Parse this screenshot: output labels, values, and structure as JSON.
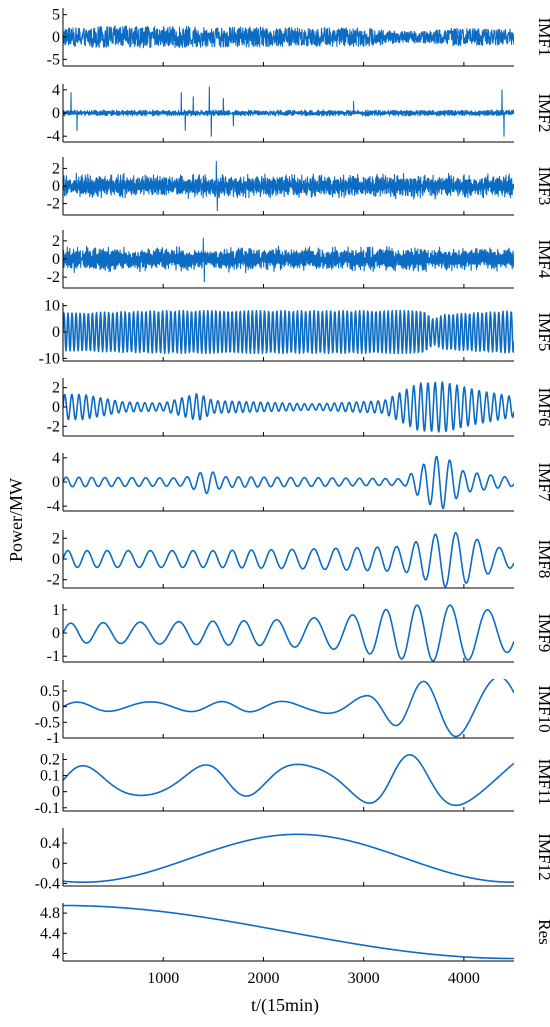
{
  "chart_data": {
    "type": "line",
    "ylabel": "Power/MW",
    "xlabel": "t/(15min)",
    "xlim": [
      0,
      4500
    ],
    "xticks": [
      1000,
      2000,
      3000,
      4000
    ],
    "xtick_labels": [
      "1000",
      "2000",
      "3000",
      "4000"
    ],
    "series_color": "#0c6cc4",
    "panels": [
      {
        "name": "IMF1",
        "ylim": [
          -6.5,
          6.5
        ],
        "yticks": [
          5,
          0,
          -5
        ],
        "ytick_labels": [
          "5",
          "0",
          "-5"
        ],
        "kind": "noise",
        "amplitude": 5.5,
        "cycles": 900,
        "envelope": [
          [
            0,
            0.8
          ],
          [
            500,
            1.0
          ],
          [
            2000,
            0.9
          ],
          [
            3000,
            0.85
          ],
          [
            3400,
            0.5
          ],
          [
            3700,
            0.6
          ],
          [
            3900,
            0.8
          ],
          [
            4500,
            0.7
          ]
        ]
      },
      {
        "name": "IMF2",
        "ylim": [
          -5,
          5
        ],
        "yticks": [
          4,
          0,
          -4
        ],
        "ytick_labels": [
          "4",
          "0",
          "-4"
        ],
        "kind": "bursty",
        "amplitude": 1.0,
        "cycles": 700,
        "envelope": [
          [
            0,
            0.25
          ],
          [
            4500,
            0.25
          ]
        ],
        "spikes": [
          [
            80,
            3.5
          ],
          [
            140,
            -3.0
          ],
          [
            1180,
            3.5
          ],
          [
            1220,
            -3.0
          ],
          [
            1300,
            2.8
          ],
          [
            1460,
            4.5
          ],
          [
            1480,
            -4.0
          ],
          [
            1600,
            2.5
          ],
          [
            1700,
            -2.2
          ],
          [
            2900,
            2.0
          ],
          [
            4380,
            4.0
          ],
          [
            4400,
            -4.0
          ]
        ]
      },
      {
        "name": "IMF3",
        "ylim": [
          -3.3,
          3.3
        ],
        "yticks": [
          2,
          0,
          -2
        ],
        "ytick_labels": [
          "2",
          "0",
          "-2"
        ],
        "kind": "noise",
        "amplitude": 1.2,
        "cycles": 550,
        "envelope": [
          [
            0,
            0.9
          ],
          [
            4500,
            0.9
          ]
        ],
        "spikes": [
          [
            1530,
            2.8
          ],
          [
            1540,
            -2.8
          ]
        ]
      },
      {
        "name": "IMF4",
        "ylim": [
          -3.2,
          3.2
        ],
        "yticks": [
          2,
          0,
          -2
        ],
        "ytick_labels": [
          "2",
          "0",
          "-2"
        ],
        "kind": "noise",
        "amplitude": 1.2,
        "cycles": 350,
        "envelope": [
          [
            0,
            0.9
          ],
          [
            4500,
            0.9
          ]
        ],
        "spikes": [
          [
            1400,
            2.3
          ],
          [
            1410,
            -2.5
          ]
        ]
      },
      {
        "name": "IMF5",
        "ylim": [
          -11,
          11
        ],
        "yticks": [
          10,
          0,
          -10
        ],
        "ytick_labels": [
          "10",
          "0",
          "-10"
        ],
        "kind": "wave",
        "amplitude": 9.5,
        "cycles": 110,
        "envelope": [
          [
            0,
            0.75
          ],
          [
            1000,
            0.85
          ],
          [
            3600,
            0.85
          ],
          [
            3700,
            0.5
          ],
          [
            3800,
            0.7
          ],
          [
            4500,
            0.85
          ]
        ]
      },
      {
        "name": "IMF6",
        "ylim": [
          -3,
          3
        ],
        "yticks": [
          2,
          0,
          -2
        ],
        "ytick_labels": [
          "2",
          "0",
          "-2"
        ],
        "kind": "wave",
        "amplitude": 2.6,
        "cycles": 62,
        "envelope": [
          [
            0,
            0.5
          ],
          [
            200,
            0.5
          ],
          [
            600,
            0.2
          ],
          [
            1000,
            0.15
          ],
          [
            1350,
            0.55
          ],
          [
            1500,
            0.25
          ],
          [
            2500,
            0.12
          ],
          [
            3200,
            0.25
          ],
          [
            3550,
            0.95
          ],
          [
            3800,
            1.0
          ],
          [
            4100,
            0.7
          ],
          [
            4500,
            0.4
          ]
        ]
      },
      {
        "name": "IMF7",
        "ylim": [
          -4.8,
          4.8
        ],
        "yticks": [
          4,
          0,
          -4
        ],
        "ytick_labels": [
          "4",
          "0",
          "-4"
        ],
        "kind": "wave",
        "amplitude": 4.4,
        "cycles": 34,
        "envelope": [
          [
            0,
            0.18
          ],
          [
            1200,
            0.15
          ],
          [
            1450,
            0.45
          ],
          [
            1600,
            0.2
          ],
          [
            3400,
            0.12
          ],
          [
            3700,
            0.95
          ],
          [
            3800,
            1.0
          ],
          [
            4000,
            0.4
          ],
          [
            4300,
            0.25
          ],
          [
            4500,
            0.15
          ]
        ]
      },
      {
        "name": "IMF8",
        "ylim": [
          -2.8,
          2.8
        ],
        "yticks": [
          2,
          0,
          -2
        ],
        "ytick_labels": [
          "2",
          "0",
          "-2"
        ],
        "kind": "wave",
        "amplitude": 2.7,
        "cycles": 22,
        "envelope": [
          [
            0,
            0.3
          ],
          [
            1500,
            0.3
          ],
          [
            2400,
            0.35
          ],
          [
            3400,
            0.45
          ],
          [
            3800,
            1.0
          ],
          [
            4000,
            0.9
          ],
          [
            4300,
            0.45
          ],
          [
            4500,
            0.3
          ]
        ]
      },
      {
        "name": "IMF9",
        "ylim": [
          -1.25,
          1.25
        ],
        "yticks": [
          1,
          0,
          -1
        ],
        "ytick_labels": [
          "1",
          "0",
          "-1"
        ],
        "kind": "wave",
        "amplitude": 1.2,
        "cycles": 13,
        "envelope": [
          [
            0,
            0.35
          ],
          [
            2000,
            0.45
          ],
          [
            2800,
            0.6
          ],
          [
            3500,
            1.0
          ],
          [
            4000,
            1.0
          ],
          [
            4500,
            0.65
          ]
        ]
      },
      {
        "name": "IMF10",
        "ylim": [
          -1,
          0.85
        ],
        "yticks": [
          0.5,
          0,
          -0.5,
          -1
        ],
        "ytick_labels": [
          "0.5",
          "0",
          "-0.5",
          "-1"
        ],
        "kind": "wave",
        "amplitude": 0.95,
        "cycles": 6.5,
        "envelope": [
          [
            0,
            0.15
          ],
          [
            2500,
            0.18
          ],
          [
            3000,
            0.35
          ],
          [
            3500,
            0.8
          ],
          [
            3900,
            1.0
          ],
          [
            4500,
            1.0
          ]
        ]
      },
      {
        "name": "IMF11",
        "ylim": [
          -0.12,
          0.24
        ],
        "yticks": [
          0.2,
          0.1,
          0,
          -0.1
        ],
        "ytick_labels": [
          "0.2",
          "0.1",
          "0",
          "-0.1"
        ],
        "kind": "wave",
        "amplitude": 0.1,
        "offset": 0.07,
        "cycles": 4.2,
        "envelope": [
          [
            0,
            0.9
          ],
          [
            2500,
            1.0
          ],
          [
            3300,
            1.6
          ],
          [
            4500,
            1.5
          ]
        ]
      },
      {
        "name": "IMF12",
        "ylim": [
          -0.45,
          0.7
        ],
        "yticks": [
          0.4,
          0,
          -0.4
        ],
        "ytick_labels": [
          "0.4",
          "0",
          "-0.4"
        ],
        "kind": "slow",
        "amplitude": 0.5,
        "offset": 0.1,
        "cycles": 1.05
      },
      {
        "name": "Res",
        "ylim": [
          3.85,
          5.0
        ],
        "yticks": [
          4.8,
          4.4,
          4
        ],
        "ytick_labels": [
          "4.8",
          "4.4",
          "4"
        ],
        "kind": "trend",
        "start": 4.95,
        "end": 3.9
      }
    ]
  }
}
